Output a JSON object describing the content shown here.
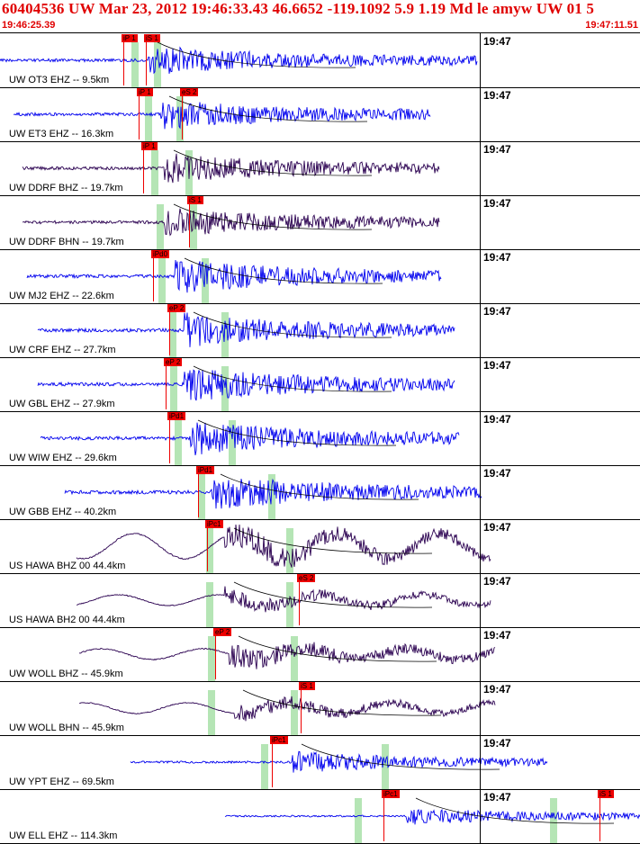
{
  "header": {
    "title": "60404536 UW Mar 23, 2012 19:46:33.43   46.6652 -119.1092  5.9 1.19 Md le amyw UW 01   5",
    "start_time": "19:46:25.39",
    "end_time": "19:47:11.51"
  },
  "colors": {
    "header": "#e00000",
    "trace_blue": "#0000ee",
    "trace_dark": "#2a0050",
    "pick": "#ee0000",
    "band": "#a8e0a8"
  },
  "panels": [
    {
      "label": "UW OT3 EHZ -- 9.5km",
      "time": "19:47",
      "color": "blue",
      "amp": 14,
      "start": 0,
      "end": 530,
      "picks": [
        "iP 1",
        "iS 1"
      ],
      "greens": [
        150,
        175
      ],
      "onset": 165
    },
    {
      "label": "UW ET3 EHZ -- 16.3km",
      "time": "19:47",
      "color": "blue",
      "amp": 14,
      "start": 15,
      "end": 478,
      "picks": [
        "iP 1",
        "eS 2"
      ],
      "greens": [
        165,
        200
      ],
      "onset": 178
    },
    {
      "label": "UW DDRF BHZ -- 19.7km",
      "time": "19:47",
      "color": "dark",
      "amp": 14,
      "start": 25,
      "end": 488,
      "picks": [
        "iP 1"
      ],
      "greens": [
        172,
        210
      ],
      "onset": 183
    },
    {
      "label": "UW DDRF BHN -- 19.7km",
      "time": "19:47",
      "color": "dark",
      "amp": 14,
      "start": 25,
      "end": 488,
      "picks": [
        "iS 1"
      ],
      "greens": [
        178,
        215
      ],
      "onset": 183
    },
    {
      "label": "UW MJ2 EHZ -- 22.6km",
      "time": "19:47",
      "color": "blue",
      "amp": 16,
      "start": 30,
      "end": 490,
      "picks": [
        "iPd0"
      ],
      "greens": [
        180,
        228
      ],
      "onset": 195
    },
    {
      "label": "UW CRF EHZ -- 27.7km",
      "time": "19:47",
      "color": "blue",
      "amp": 16,
      "start": 42,
      "end": 505,
      "picks": [
        "eP 2"
      ],
      "greens": [
        192,
        250
      ],
      "onset": 205
    },
    {
      "label": "UW GBL EHZ -- 27.9km",
      "time": "19:47",
      "color": "blue",
      "amp": 16,
      "start": 42,
      "end": 505,
      "picks": [
        "eP 2"
      ],
      "greens": [
        193,
        250
      ],
      "onset": 205
    },
    {
      "label": "UW WIW EHZ -- 29.6km",
      "time": "19:47",
      "color": "blue",
      "amp": 16,
      "start": 45,
      "end": 510,
      "picks": [
        "iPd1"
      ],
      "greens": [
        198,
        258
      ],
      "onset": 210
    },
    {
      "label": "UW GBB EHZ -- 40.2km",
      "time": "19:47",
      "color": "blue",
      "amp": 16,
      "start": 72,
      "end": 535,
      "picks": [
        "iPd1"
      ],
      "greens": [
        224,
        302
      ],
      "onset": 235
    },
    {
      "label": "US HAWA BHZ 00 44.4km",
      "time": "19:47",
      "color": "dark",
      "amp": 22,
      "start": 85,
      "end": 545,
      "picks": [
        "iPc1"
      ],
      "greens": [
        233,
        322
      ],
      "onset": 250
    },
    {
      "label": "US HAWA BH2 00 44.4km",
      "time": "19:47",
      "color": "dark",
      "amp": 14,
      "start": 85,
      "end": 545,
      "picks": [
        "eS 2"
      ],
      "greens": [
        233,
        322
      ],
      "onset": 250
    },
    {
      "label": "UW WOLL BHZ -- 45.9km",
      "time": "19:47",
      "color": "dark",
      "amp": 18,
      "start": 88,
      "end": 550,
      "picks": [
        "eP 2"
      ],
      "greens": [
        235,
        327
      ],
      "onset": 255
    },
    {
      "label": "UW WOLL BHN -- 45.9km",
      "time": "19:47",
      "color": "dark",
      "amp": 14,
      "start": 88,
      "end": 550,
      "picks": [
        "iS 1"
      ],
      "greens": [
        235,
        327
      ],
      "onset": 260
    },
    {
      "label": "UW YPT EHZ -- 69.5km",
      "time": "19:47",
      "color": "blue",
      "amp": 10,
      "start": 145,
      "end": 608,
      "picks": [
        "iPc1"
      ],
      "greens": [
        294,
        428
      ],
      "onset": 325
    },
    {
      "label": "UW ELL EHZ -- 114.3km",
      "time": "19:47",
      "color": "blue",
      "amp": 8,
      "start": 250,
      "end": 711,
      "picks": [
        "iPc1",
        "iS 1"
      ],
      "greens": [
        398,
        615
      ],
      "onset": 452
    }
  ]
}
